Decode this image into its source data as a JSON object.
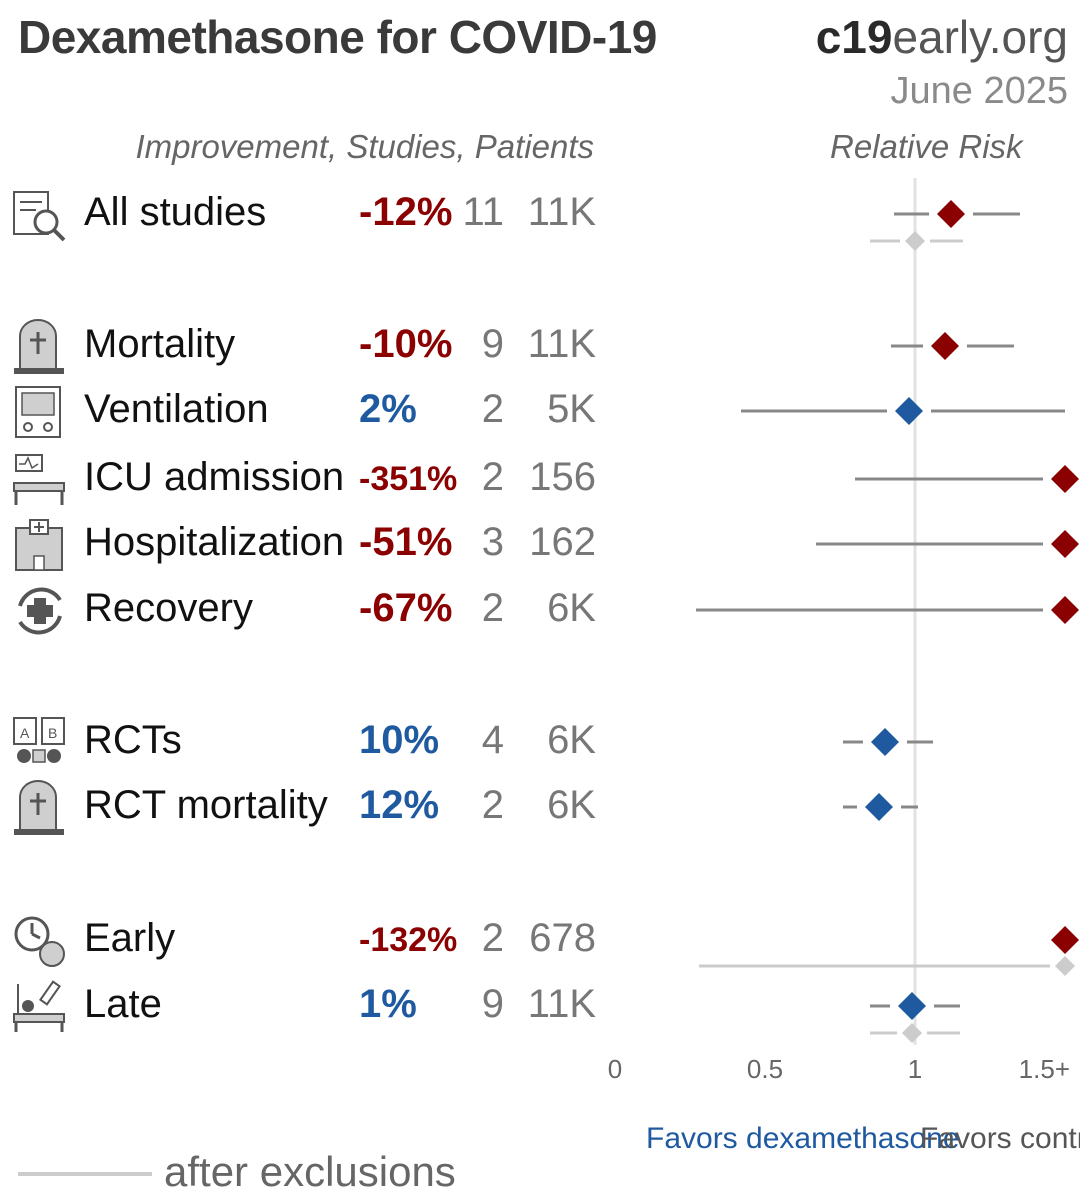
{
  "header": {
    "title": "Dexamethasone for COVID-19",
    "site_prefix": "c19",
    "site_suffix": "early.org",
    "date": "June 2025",
    "col_left": "Improvement, Studies, Patients",
    "col_right": "Relative Risk"
  },
  "chart_data": {
    "type": "forest",
    "xlabel": "",
    "xlim": [
      0,
      1.5
    ],
    "xticks": [
      {
        "value": 0,
        "label": "0"
      },
      {
        "value": 0.5,
        "label": "0.5"
      },
      {
        "value": 1,
        "label": "1"
      },
      {
        "value": 1.5,
        "label": "1.5+"
      }
    ],
    "reference_line": 1,
    "colors": {
      "harm": "#8b0000",
      "benefit": "#1f5aa0",
      "ci": "#888888",
      "excluded": "#cccccc"
    },
    "rows": [
      {
        "label": "All studies",
        "icon": "document-search-icon",
        "improvement": "-12%",
        "studies": "11",
        "patients": "11K",
        "rr": 1.12,
        "ci": [
          0.93,
          1.35
        ],
        "excl": {
          "rr": 1.0,
          "ci": [
            0.85,
            1.16
          ]
        }
      },
      {
        "label": "Mortality",
        "icon": "tombstone-icon",
        "improvement": "-10%",
        "studies": "9",
        "patients": "11K",
        "rr": 1.1,
        "ci": [
          0.92,
          1.33
        ]
      },
      {
        "label": "Ventilation",
        "icon": "ventilator-icon",
        "improvement": "2%",
        "studies": "2",
        "patients": "5K",
        "rr": 0.98,
        "ci": [
          0.42,
          1.6
        ]
      },
      {
        "label": "ICU admission",
        "icon": "icu-bed-icon",
        "improvement": "-351%",
        "studies": "2",
        "patients": "156",
        "rr": 4.51,
        "ci": [
          0.8,
          20
        ]
      },
      {
        "label": "Hospitalization",
        "icon": "hospital-icon",
        "improvement": "-51%",
        "studies": "3",
        "patients": "162",
        "rr": 1.51,
        "ci": [
          0.67,
          3.4
        ]
      },
      {
        "label": "Recovery",
        "icon": "recovery-cycle-icon",
        "improvement": "-67%",
        "studies": "2",
        "patients": "6K",
        "rr": 1.67,
        "ci": [
          0.27,
          10
        ]
      },
      {
        "label": "RCTs",
        "icon": "randomized-trial-icon",
        "improvement": "10%",
        "studies": "4",
        "patients": "6K",
        "rr": 0.9,
        "ci": [
          0.76,
          1.06
        ]
      },
      {
        "label": "RCT mortality",
        "icon": "tombstone-icon",
        "improvement": "12%",
        "studies": "2",
        "patients": "6K",
        "rr": 0.88,
        "ci": [
          0.76,
          1.01
        ]
      },
      {
        "label": "Early",
        "icon": "early-treatment-icon",
        "improvement": "-132%",
        "studies": "2",
        "patients": "678",
        "rr": 2.32,
        "ci": null,
        "excl": {
          "rr": 1.55,
          "ci": [
            0.28,
            1.6
          ]
        }
      },
      {
        "label": "Late",
        "icon": "late-treatment-icon",
        "improvement": "1%",
        "studies": "9",
        "patients": "11K",
        "rr": 0.99,
        "ci": [
          0.85,
          1.15
        ],
        "excl": {
          "rr": 0.99,
          "ci": [
            0.85,
            1.15
          ]
        }
      }
    ]
  },
  "footer": {
    "legend_label": "after exclusions",
    "favors_left": "Favors dexamethasone",
    "favors_right": "Favors control"
  }
}
